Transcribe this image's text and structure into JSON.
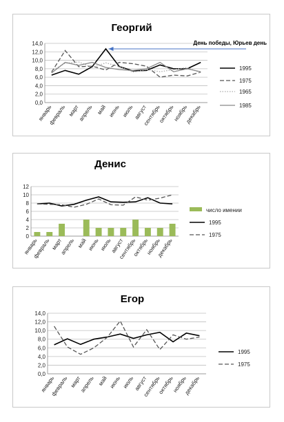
{
  "chart_data": [
    {
      "type": "line",
      "title": "Георгий",
      "categories": [
        "январь",
        "февраль",
        "март",
        "апрель",
        "май",
        "июнь",
        "июль",
        "август",
        "сентябрь",
        "октябрь",
        "ноябрь",
        "декабрь"
      ],
      "ylim": [
        0,
        14
      ],
      "y_ticks": [
        "0,0",
        "2,0",
        "4,0",
        "6,0",
        "8,0",
        "10,0",
        "12,0",
        "14,0"
      ],
      "grid": true,
      "legend": "right",
      "annotation": "День победы, Юрьев день",
      "series": [
        {
          "name": "1995",
          "color": "#000000",
          "dash": "solid",
          "values": [
            6.5,
            7.6,
            6.7,
            8.5,
            12.7,
            8.5,
            7.5,
            7.6,
            8.9,
            8.0,
            8.0,
            9.5
          ]
        },
        {
          "name": "1975",
          "color": "#555555",
          "dash": "dashed",
          "values": [
            7.2,
            12.3,
            8.5,
            8.6,
            7.7,
            9.5,
            9.2,
            8.6,
            6.0,
            6.5,
            6.3,
            7.2
          ]
        },
        {
          "name": "1965",
          "color": "#aaaaaa",
          "dash": "dotted",
          "values": [
            7.5,
            9.3,
            9.6,
            8.3,
            9.4,
            8.5,
            7.2,
            7.8,
            7.3,
            7.8,
            8.3,
            7.0
          ]
        },
        {
          "name": "1985",
          "color": "#888888",
          "dash": "solid",
          "values": [
            7.0,
            9.5,
            8.8,
            9.5,
            8.3,
            7.8,
            7.6,
            8.0,
            9.5,
            7.3,
            8.0,
            7.3
          ]
        }
      ]
    },
    {
      "type": "bar",
      "title": "Денис",
      "categories": [
        "январь",
        "февраль",
        "март",
        "апрель",
        "май",
        "июнь",
        "июль",
        "август",
        "сентябрь",
        "октябрь",
        "ноябрь",
        "декабрь"
      ],
      "ylim": [
        0,
        12
      ],
      "y_ticks": [
        "0",
        "2",
        "4",
        "6",
        "8",
        "10",
        "12"
      ],
      "grid": true,
      "legend": "right",
      "bars": {
        "name": "число имении",
        "color": "#9bbb59",
        "values": [
          1,
          1,
          3,
          0,
          4,
          2,
          2,
          2,
          4,
          2,
          2,
          3
        ]
      },
      "series": [
        {
          "name": "1995",
          "color": "#000000",
          "dash": "solid",
          "values": [
            7.8,
            8.0,
            7.3,
            7.7,
            8.7,
            9.5,
            8.3,
            8.2,
            8.3,
            9.3,
            8.0,
            7.8
          ]
        },
        {
          "name": "1975",
          "color": "#555555",
          "dash": "dashed",
          "values": [
            7.8,
            7.7,
            7.6,
            7.0,
            7.7,
            9.0,
            7.6,
            7.5,
            9.5,
            8.7,
            9.2,
            10.0
          ]
        }
      ]
    },
    {
      "type": "line",
      "title": "Егор",
      "categories": [
        "январь",
        "февраль",
        "март",
        "апрель",
        "май",
        "июнь",
        "июль",
        "август",
        "сентябрь",
        "октябрь",
        "ноябрь",
        "декабрь"
      ],
      "ylim": [
        0,
        14
      ],
      "y_ticks": [
        "0,0",
        "2,0",
        "4,0",
        "6,0",
        "8,0",
        "10,0",
        "12,0",
        "14,0"
      ],
      "grid": true,
      "legend": "right",
      "series": [
        {
          "name": "1995",
          "color": "#000000",
          "dash": "solid",
          "values": [
            6.7,
            8.1,
            6.8,
            8.0,
            8.5,
            9.2,
            8.2,
            9.0,
            9.6,
            7.4,
            9.4,
            8.8
          ]
        },
        {
          "name": "1975",
          "color": "#555555",
          "dash": "dashed",
          "values": [
            11.0,
            6.2,
            4.5,
            6.0,
            8.4,
            12.2,
            6.2,
            10.2,
            5.6,
            9.0,
            8.0,
            8.5
          ]
        }
      ]
    }
  ]
}
